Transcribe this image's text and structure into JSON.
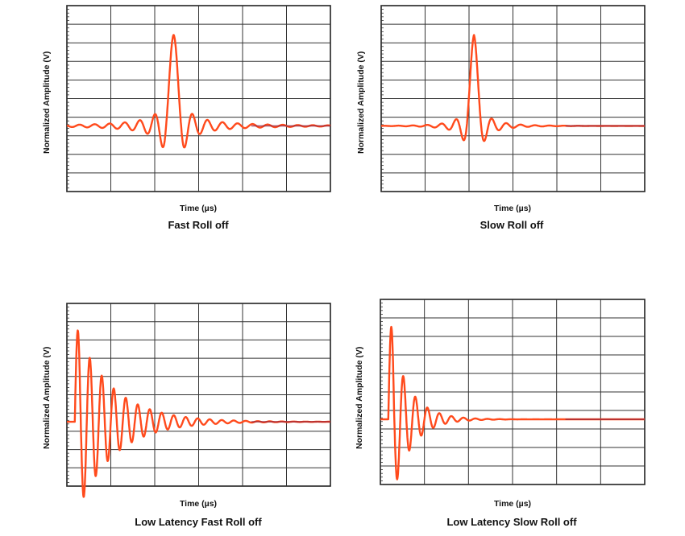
{
  "chart_data": [
    {
      "type": "line",
      "title": "Fast Roll off",
      "xlabel": "Time (µs)",
      "ylabel": "Normalized Amplitude (V)",
      "grid": true,
      "color": "#ff4a1c",
      "x": [
        0,
        1.5,
        2.5,
        3.0,
        3.2,
        3.4,
        3.6,
        3.8,
        4.0,
        4.2,
        4.4,
        4.6,
        5,
        6,
        7.5,
        10
      ],
      "series": [
        {
          "values": [
            0,
            0.001,
            0.02,
            -0.06,
            0.1,
            -0.18,
            0.18,
            -0.2,
            1.0,
            -0.22,
            0.14,
            -0.1,
            0.05,
            0.01,
            0.003,
            0
          ]
        }
      ]
    },
    {
      "type": "line",
      "title": "Slow Roll off",
      "xlabel": "Time (µs)",
      "ylabel": "Normalized Amplitude (V)",
      "grid": true,
      "color": "#ff4a1c",
      "x": [
        0,
        1.5,
        2.5,
        3.0,
        3.2,
        3.4,
        3.6,
        3.8,
        4.0,
        4.2,
        4.4,
        4.6,
        5,
        6,
        7.5,
        10
      ],
      "series": [
        {
          "values": [
            0,
            0.0,
            0.01,
            -0.04,
            0.07,
            -0.12,
            0.15,
            -0.25,
            1.0,
            -0.25,
            0.12,
            -0.06,
            0.02,
            0.0,
            0,
            0
          ]
        }
      ]
    },
    {
      "type": "line",
      "title": "Low Latency Fast Roll off",
      "xlabel": "Time (µs)",
      "ylabel": "Normalized Amplitude (V)",
      "grid": true,
      "color": "#ff4a1c",
      "x": [
        0,
        0.2,
        0.35,
        0.55,
        0.75,
        1.0,
        1.5,
        2.0,
        3.0,
        4.0,
        5.0,
        7.5,
        10
      ],
      "series": [
        {
          "values": [
            0,
            0.0,
            0.3,
            1.0,
            -0.55,
            0.4,
            0.3,
            0.2,
            0.12,
            0.06,
            0.02,
            0.005,
            0
          ]
        }
      ]
    },
    {
      "type": "line",
      "title": "Low Latency Slow Roll off",
      "xlabel": "Time (µs)",
      "ylabel": "Normalized Amplitude (V)",
      "grid": true,
      "color": "#ff4a1c",
      "x": [
        0,
        0.2,
        0.35,
        0.55,
        0.75,
        1.0,
        1.5,
        2.0,
        3.0,
        4.0,
        5.0,
        7.5,
        10
      ],
      "series": [
        {
          "values": [
            0,
            0.0,
            0.3,
            1.0,
            -0.55,
            0.42,
            0.28,
            0.16,
            0.06,
            0.02,
            0.005,
            0.0,
            0
          ]
        }
      ]
    }
  ]
}
